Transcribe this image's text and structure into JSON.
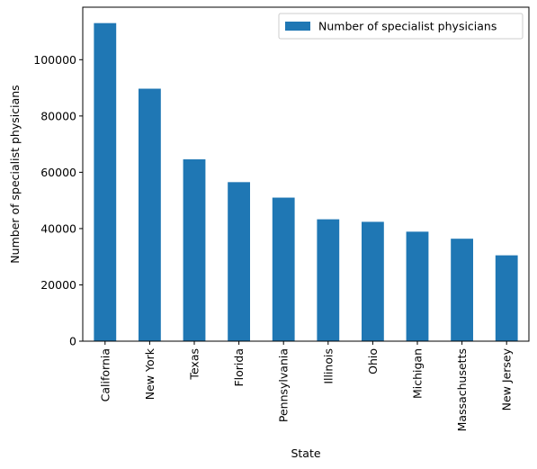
{
  "chart_data": {
    "type": "bar",
    "xlabel": "State",
    "ylabel": "Number of specialist physicians",
    "categories": [
      "California",
      "New York",
      "Texas",
      "Florida",
      "Pennsylvania",
      "Illinois",
      "Ohio",
      "Michigan",
      "Massachusetts",
      "New Jersey"
    ],
    "series": [
      {
        "name": "Number of specialist physicians",
        "values": [
          113000,
          89700,
          64600,
          56500,
          51000,
          43300,
          42400,
          38900,
          36400,
          30500
        ],
        "color": "#1f77b4"
      }
    ],
    "ylim": [
      0,
      118650
    ],
    "yticks": [
      0,
      20000,
      40000,
      60000,
      80000,
      100000
    ],
    "ytick_labels": [
      "0",
      "20000",
      "40000",
      "60000",
      "80000",
      "100000"
    ],
    "legend_position": "top-right",
    "grid": false
  }
}
